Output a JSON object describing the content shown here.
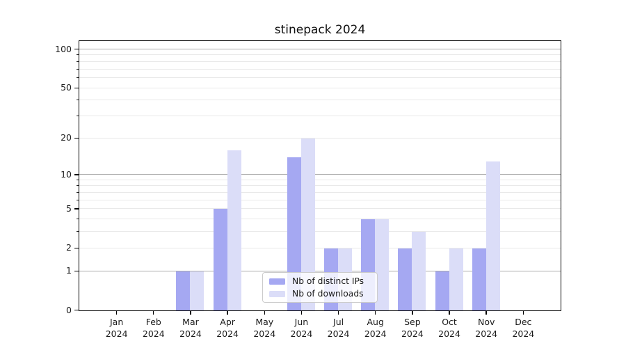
{
  "chart_data": {
    "type": "bar",
    "title": "stinepack 2024",
    "categories": [
      "Jan 2024",
      "Feb 2024",
      "Mar 2024",
      "Apr 2024",
      "May 2024",
      "Jun 2024",
      "Jul 2024",
      "Aug 2024",
      "Sep 2024",
      "Oct 2024",
      "Nov 2024",
      "Dec 2024"
    ],
    "series": [
      {
        "name": "Nb of distinct IPs",
        "color": "#a5a8f2",
        "values": [
          0,
          0,
          1,
          5,
          0,
          14,
          2,
          4,
          2,
          1,
          2,
          0
        ]
      },
      {
        "name": "Nb of downloads",
        "color": "#dbddf8",
        "values": [
          0,
          0,
          1,
          16,
          0,
          20,
          2,
          4,
          3,
          2,
          13,
          0
        ]
      }
    ],
    "yscale": "log1p",
    "ylim": [
      0,
      117
    ],
    "yticks": [
      0,
      1,
      2,
      5,
      10,
      20,
      50,
      100
    ],
    "major_gridlines": [
      1,
      10,
      100
    ],
    "minor_gridlines": [
      2,
      3,
      4,
      5,
      6,
      7,
      8,
      9,
      20,
      30,
      40,
      50,
      60,
      70,
      80,
      90
    ],
    "grid": true,
    "legend_position": "lower center",
    "colors": {
      "grid_major": "#ababab",
      "grid_minor": "#e9e9e9",
      "spine": "#000000",
      "text": "#1a1a1a",
      "legend_border": "#cccccc"
    }
  }
}
